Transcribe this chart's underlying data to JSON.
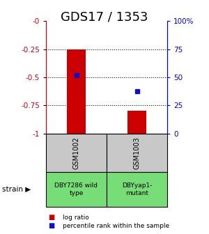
{
  "title": "GDS17 / 1353",
  "samples": [
    "GSM1002",
    "GSM1003"
  ],
  "bar_bottoms": [
    -1,
    -1
  ],
  "bar_tops": [
    -0.25,
    -0.8
  ],
  "percentile_log_values": [
    -0.48,
    -0.625
  ],
  "strain_labels": [
    "DBY7286 wild\ntype",
    "DBYyap1-\nmutant"
  ],
  "ylim": [
    -1,
    0
  ],
  "yticks_left": [
    0,
    -0.25,
    -0.5,
    -0.75,
    -1
  ],
  "yticks_left_labels": [
    "-0",
    "-0.25",
    "-0.5",
    "-0.75",
    "-1"
  ],
  "yticks_right": [
    0,
    25,
    50,
    75,
    100
  ],
  "yticks_right_labels": [
    "0",
    "25",
    "50",
    "75",
    "100%"
  ],
  "bar_color": "#cc0000",
  "dot_color": "#1111cc",
  "sample_box_color": "#c8c8c8",
  "strain_box_color": "#77dd77",
  "left_axis_color": "#cc0000",
  "right_axis_color": "#0000cc",
  "title_fontsize": 13,
  "legend_bar_label": "log ratio",
  "legend_dot_label": "percentile rank within the sample",
  "bar_width": 0.3
}
